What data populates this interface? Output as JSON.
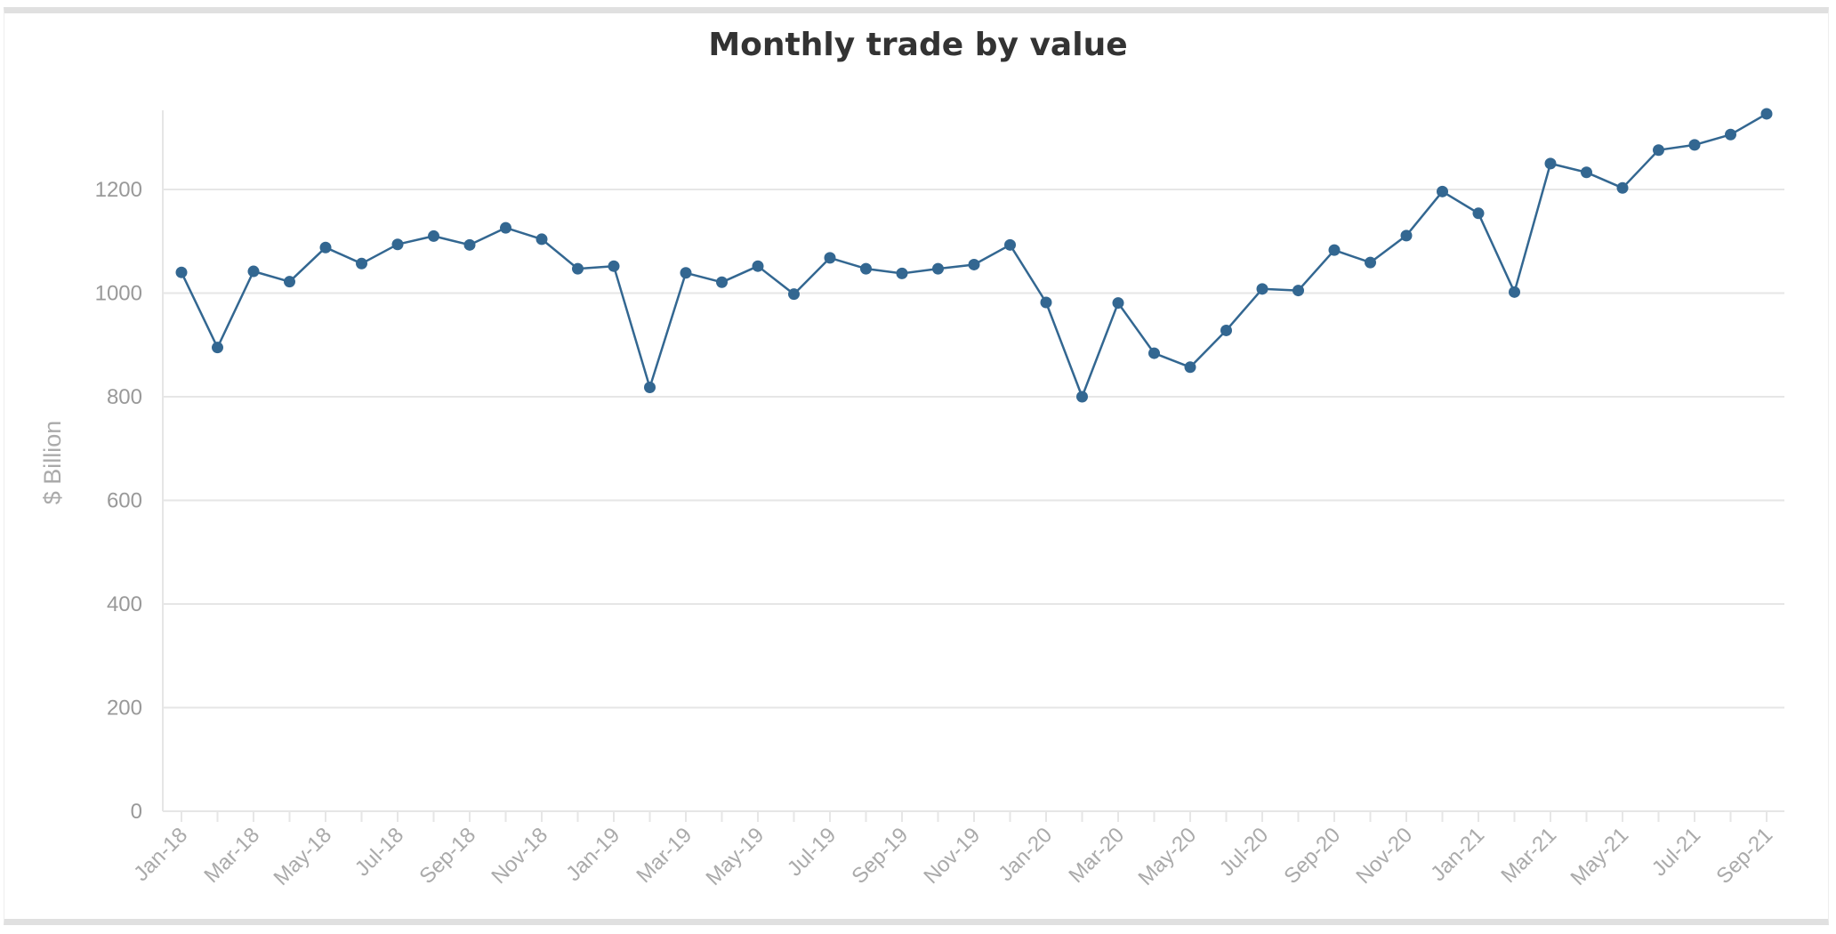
{
  "chart_data": {
    "type": "line",
    "title": "Monthly trade by value",
    "xlabel": "",
    "ylabel": "$ Billion",
    "ylim": [
      0,
      1300
    ],
    "yticks": [
      0,
      200,
      400,
      600,
      800,
      1000,
      1200
    ],
    "grid": true,
    "colors": {
      "series": "#336791",
      "grid": "#e6e6e6",
      "axis": "#e6e6e6"
    },
    "x": [
      "Jan-18",
      "Feb-18",
      "Mar-18",
      "Apr-18",
      "May-18",
      "Jun-18",
      "Jul-18",
      "Aug-18",
      "Sep-18",
      "Oct-18",
      "Nov-18",
      "Dec-18",
      "Jan-19",
      "Feb-19",
      "Mar-19",
      "Apr-19",
      "May-19",
      "Jun-19",
      "Jul-19",
      "Aug-19",
      "Sep-19",
      "Oct-19",
      "Nov-19",
      "Dec-19",
      "Jan-20",
      "Feb-20",
      "Mar-20",
      "Apr-20",
      "May-20",
      "Jun-20",
      "Jul-20",
      "Aug-20",
      "Sep-20",
      "Oct-20",
      "Nov-20",
      "Dec-20",
      "Jan-21",
      "Feb-21",
      "Mar-21",
      "Apr-21",
      "May-21",
      "Jun-21",
      "Jul-21",
      "Aug-21",
      "Sep-21"
    ],
    "tick_labels": [
      "Jan-18",
      "Mar-18",
      "May-18",
      "Jul-18",
      "Sep-18",
      "Nov-18",
      "Jan-19",
      "Mar-19",
      "May-19",
      "Jul-19",
      "Sep-19",
      "Nov-19",
      "Jan-20",
      "Mar-20",
      "May-20",
      "Jul-20",
      "Sep-20",
      "Nov-20",
      "Jan-21",
      "Mar-21",
      "May-21",
      "Jul-21",
      "Sep-21"
    ],
    "series": [
      {
        "values": [
          1040,
          895,
          1042,
          1022,
          1088,
          1057,
          1094,
          1110,
          1093,
          1126,
          1104,
          1047,
          1052,
          818,
          1039,
          1021,
          1052,
          998,
          1068,
          1047,
          1038,
          1047,
          1055,
          1093,
          982,
          800,
          981,
          884,
          857,
          928,
          1008,
          1005,
          1083,
          1059,
          1111,
          1196,
          1154,
          1002,
          1250,
          1233,
          1203,
          1276,
          1286,
          1306,
          1346
        ]
      }
    ]
  }
}
